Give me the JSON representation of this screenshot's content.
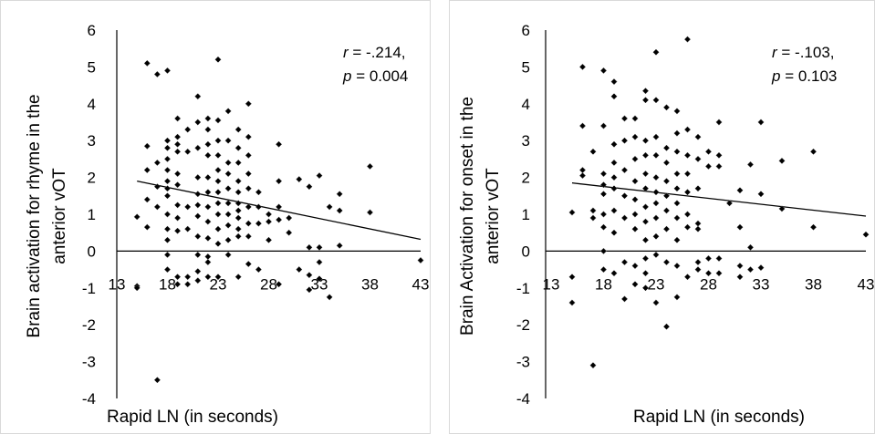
{
  "chart_data": [
    {
      "type": "scatter",
      "title": "",
      "xlabel": "Rapid LN (in seconds)",
      "ylabel_lines": [
        "Brain activation for rhyme in the",
        "anterior vOT"
      ],
      "xlim": [
        13,
        43
      ],
      "ylim": [
        -4,
        6
      ],
      "x_ticks": [
        13,
        18,
        23,
        28,
        33,
        38,
        43
      ],
      "y_ticks": [
        6,
        5,
        4,
        3,
        2,
        1,
        0,
        -1,
        -2,
        -3,
        -4
      ],
      "stat_r": {
        "prefix": "r",
        "value": " = -.214,"
      },
      "stat_p": {
        "prefix": "p",
        "value": " = 0.004"
      },
      "trendline": {
        "x": [
          15,
          43
        ],
        "y": [
          1.9,
          0.32
        ]
      },
      "marker_color": "#000000",
      "points": [
        [
          15,
          0.93
        ],
        [
          15,
          -0.95
        ],
        [
          15,
          -1.0
        ],
        [
          16,
          2.85
        ],
        [
          16,
          2.2
        ],
        [
          16,
          1.4
        ],
        [
          16,
          0.65
        ],
        [
          16,
          5.1
        ],
        [
          17,
          4.8
        ],
        [
          17,
          2.4
        ],
        [
          17,
          1.75
        ],
        [
          17,
          1.2
        ],
        [
          17,
          -3.5
        ],
        [
          18,
          4.9
        ],
        [
          18,
          3.0
        ],
        [
          18,
          2.8
        ],
        [
          18,
          2.5
        ],
        [
          18,
          2.2
        ],
        [
          18,
          1.9
        ],
        [
          18,
          1.7
        ],
        [
          18,
          1.5
        ],
        [
          18,
          1.0
        ],
        [
          18,
          0.6
        ],
        [
          18,
          0.3
        ],
        [
          18,
          -0.1
        ],
        [
          18,
          -0.5
        ],
        [
          19,
          3.6
        ],
        [
          19,
          3.1
        ],
        [
          19,
          2.9
        ],
        [
          19,
          2.7
        ],
        [
          19,
          2.1
        ],
        [
          19,
          1.8
        ],
        [
          19,
          1.25
        ],
        [
          19,
          0.9
        ],
        [
          19,
          0.55
        ],
        [
          19,
          -0.7
        ],
        [
          19,
          -0.9
        ],
        [
          20,
          3.3
        ],
        [
          20,
          2.7
        ],
        [
          20,
          1.2
        ],
        [
          20,
          0.6
        ],
        [
          20,
          -0.7
        ],
        [
          20,
          -0.9
        ],
        [
          21,
          4.2
        ],
        [
          21,
          3.5
        ],
        [
          21,
          2.8
        ],
        [
          21,
          2.0
        ],
        [
          21,
          1.55
        ],
        [
          21,
          1.25
        ],
        [
          21,
          0.95
        ],
        [
          21,
          0.4
        ],
        [
          21,
          -0.1
        ],
        [
          21,
          -0.55
        ],
        [
          21,
          -0.8
        ],
        [
          22,
          3.6
        ],
        [
          22,
          3.3
        ],
        [
          22,
          2.9
        ],
        [
          22,
          2.6
        ],
        [
          22,
          2.0
        ],
        [
          22,
          1.6
        ],
        [
          22,
          1.2
        ],
        [
          22,
          0.8
        ],
        [
          22,
          0.35
        ],
        [
          22,
          -0.15
        ],
        [
          22,
          -0.3
        ],
        [
          22,
          -0.7
        ],
        [
          23,
          5.2
        ],
        [
          23,
          3.55
        ],
        [
          23,
          3.0
        ],
        [
          23,
          2.6
        ],
        [
          23,
          2.2
        ],
        [
          23,
          1.9
        ],
        [
          23,
          1.6
        ],
        [
          23,
          1.3
        ],
        [
          23,
          1.0
        ],
        [
          23,
          0.6
        ],
        [
          23,
          0.2
        ],
        [
          23,
          -0.7
        ],
        [
          24,
          3.8
        ],
        [
          24,
          3.0
        ],
        [
          24,
          2.4
        ],
        [
          24,
          2.1
        ],
        [
          24,
          1.7
        ],
        [
          24,
          1.3
        ],
        [
          24,
          1.0
        ],
        [
          24,
          0.7
        ],
        [
          24,
          0.3
        ],
        [
          24,
          -0.1
        ],
        [
          25,
          3.3
        ],
        [
          25,
          2.8
        ],
        [
          25,
          2.4
        ],
        [
          25,
          1.9
        ],
        [
          25,
          1.6
        ],
        [
          25,
          1.3
        ],
        [
          25,
          1.1
        ],
        [
          25,
          0.9
        ],
        [
          25,
          0.6
        ],
        [
          25,
          0.4
        ],
        [
          25,
          -0.7
        ],
        [
          26,
          4.0
        ],
        [
          26,
          3.1
        ],
        [
          26,
          2.6
        ],
        [
          26,
          2.1
        ],
        [
          26,
          1.7
        ],
        [
          26,
          1.2
        ],
        [
          26,
          0.75
        ],
        [
          26,
          0.4
        ],
        [
          26,
          -0.35
        ],
        [
          27,
          1.6
        ],
        [
          27,
          1.2
        ],
        [
          27,
          0.75
        ],
        [
          27,
          -0.5
        ],
        [
          28,
          1.0
        ],
        [
          28,
          0.8
        ],
        [
          28,
          0.3
        ],
        [
          29,
          2.9
        ],
        [
          29,
          1.9
        ],
        [
          29,
          1.2
        ],
        [
          29,
          0.85
        ],
        [
          29,
          -0.9
        ],
        [
          30,
          0.9
        ],
        [
          30,
          0.5
        ],
        [
          31,
          1.95
        ],
        [
          31,
          -0.5
        ],
        [
          32,
          1.75
        ],
        [
          32,
          0.1
        ],
        [
          32,
          -0.65
        ],
        [
          32,
          -1.05
        ],
        [
          33,
          2.05
        ],
        [
          33,
          0.1
        ],
        [
          33,
          -0.3
        ],
        [
          33,
          -0.75
        ],
        [
          34,
          1.2
        ],
        [
          34,
          -1.25
        ],
        [
          35,
          1.55
        ],
        [
          35,
          1.1
        ],
        [
          35,
          0.15
        ],
        [
          38,
          2.3
        ],
        [
          38,
          1.05
        ],
        [
          43,
          -0.25
        ]
      ]
    },
    {
      "type": "scatter",
      "title": "",
      "xlabel": "Rapid LN (in seconds)",
      "ylabel_lines": [
        "Brain Activation for onset in the",
        "anterior vOT"
      ],
      "xlim": [
        13,
        43
      ],
      "ylim": [
        -4,
        6
      ],
      "x_ticks": [
        13,
        18,
        23,
        28,
        33,
        38,
        43
      ],
      "y_ticks": [
        6,
        5,
        4,
        3,
        2,
        1,
        0,
        -1,
        -2,
        -3,
        -4
      ],
      "stat_r": {
        "prefix": "r",
        "value": " = -.103,"
      },
      "stat_p": {
        "prefix": "p",
        "value": " = 0.103"
      },
      "trendline": {
        "x": [
          15,
          43
        ],
        "y": [
          1.85,
          0.95
        ]
      },
      "marker_color": "#000000",
      "points": [
        [
          15,
          1.05
        ],
        [
          15,
          -0.7
        ],
        [
          15,
          -1.4
        ],
        [
          16,
          5.0
        ],
        [
          16,
          3.4
        ],
        [
          16,
          2.2
        ],
        [
          16,
          2.05
        ],
        [
          17,
          2.7
        ],
        [
          17,
          1.1
        ],
        [
          17,
          0.9
        ],
        [
          17,
          -3.1
        ],
        [
          18,
          4.9
        ],
        [
          18,
          3.4
        ],
        [
          18,
          2.1
        ],
        [
          18,
          1.8
        ],
        [
          18,
          1.55
        ],
        [
          18,
          1.0
        ],
        [
          18,
          0.65
        ],
        [
          18,
          0.0
        ],
        [
          18,
          -0.5
        ],
        [
          19,
          4.2
        ],
        [
          19,
          4.6
        ],
        [
          19,
          2.9
        ],
        [
          19,
          2.4
        ],
        [
          19,
          2.0
        ],
        [
          19,
          1.7
        ],
        [
          19,
          1.1
        ],
        [
          19,
          0.5
        ],
        [
          19,
          -0.6
        ],
        [
          20,
          3.6
        ],
        [
          20,
          3.0
        ],
        [
          20,
          2.2
        ],
        [
          20,
          1.5
        ],
        [
          20,
          0.9
        ],
        [
          20,
          -0.3
        ],
        [
          20,
          -1.3
        ],
        [
          21,
          3.6
        ],
        [
          21,
          3.1
        ],
        [
          21,
          2.5
        ],
        [
          21,
          1.9
        ],
        [
          21,
          1.4
        ],
        [
          21,
          1.0
        ],
        [
          21,
          0.6
        ],
        [
          21,
          -0.4
        ],
        [
          21,
          -0.9
        ],
        [
          22,
          4.1
        ],
        [
          22,
          4.35
        ],
        [
          22,
          3.0
        ],
        [
          22,
          2.6
        ],
        [
          22,
          2.1
        ],
        [
          22,
          1.7
        ],
        [
          22,
          1.2
        ],
        [
          22,
          0.8
        ],
        [
          22,
          0.3
        ],
        [
          22,
          -0.2
        ],
        [
          22,
          -0.6
        ],
        [
          22,
          -1.0
        ],
        [
          23,
          5.4
        ],
        [
          23,
          4.1
        ],
        [
          23,
          3.1
        ],
        [
          23,
          2.6
        ],
        [
          23,
          2.0
        ],
        [
          23,
          1.6
        ],
        [
          23,
          1.3
        ],
        [
          23,
          0.9
        ],
        [
          23,
          0.4
        ],
        [
          23,
          -0.1
        ],
        [
          23,
          -1.4
        ],
        [
          24,
          3.9
        ],
        [
          24,
          2.8
        ],
        [
          24,
          2.4
        ],
        [
          24,
          1.9
        ],
        [
          24,
          1.5
        ],
        [
          24,
          1.1
        ],
        [
          24,
          0.6
        ],
        [
          24,
          -0.3
        ],
        [
          24,
          -2.05
        ],
        [
          25,
          3.8
        ],
        [
          25,
          3.2
        ],
        [
          25,
          2.7
        ],
        [
          25,
          2.1
        ],
        [
          25,
          1.7
        ],
        [
          25,
          1.3
        ],
        [
          25,
          0.9
        ],
        [
          25,
          0.3
        ],
        [
          25,
          -0.4
        ],
        [
          25,
          -1.25
        ],
        [
          26,
          5.75
        ],
        [
          26,
          3.3
        ],
        [
          26,
          2.6
        ],
        [
          26,
          2.1
        ],
        [
          26,
          1.6
        ],
        [
          26,
          1.0
        ],
        [
          26,
          0.65
        ],
        [
          26,
          -0.7
        ],
        [
          27,
          3.1
        ],
        [
          27,
          2.5
        ],
        [
          27,
          1.7
        ],
        [
          27,
          0.75
        ],
        [
          27,
          0.6
        ],
        [
          27,
          -0.3
        ],
        [
          27,
          -0.5
        ],
        [
          28,
          2.7
        ],
        [
          28,
          2.3
        ],
        [
          28,
          -0.2
        ],
        [
          28,
          -0.6
        ],
        [
          29,
          3.5
        ],
        [
          29,
          2.6
        ],
        [
          29,
          2.3
        ],
        [
          29,
          -0.2
        ],
        [
          29,
          -0.6
        ],
        [
          30,
          1.3
        ],
        [
          31,
          1.65
        ],
        [
          31,
          0.65
        ],
        [
          31,
          -0.4
        ],
        [
          31,
          -0.7
        ],
        [
          32,
          2.35
        ],
        [
          32,
          0.1
        ],
        [
          32,
          -0.5
        ],
        [
          33,
          3.5
        ],
        [
          33,
          1.55
        ],
        [
          33,
          -0.45
        ],
        [
          35,
          2.45
        ],
        [
          35,
          1.15
        ],
        [
          38,
          2.7
        ],
        [
          38,
          0.65
        ],
        [
          43,
          0.45
        ]
      ]
    }
  ]
}
